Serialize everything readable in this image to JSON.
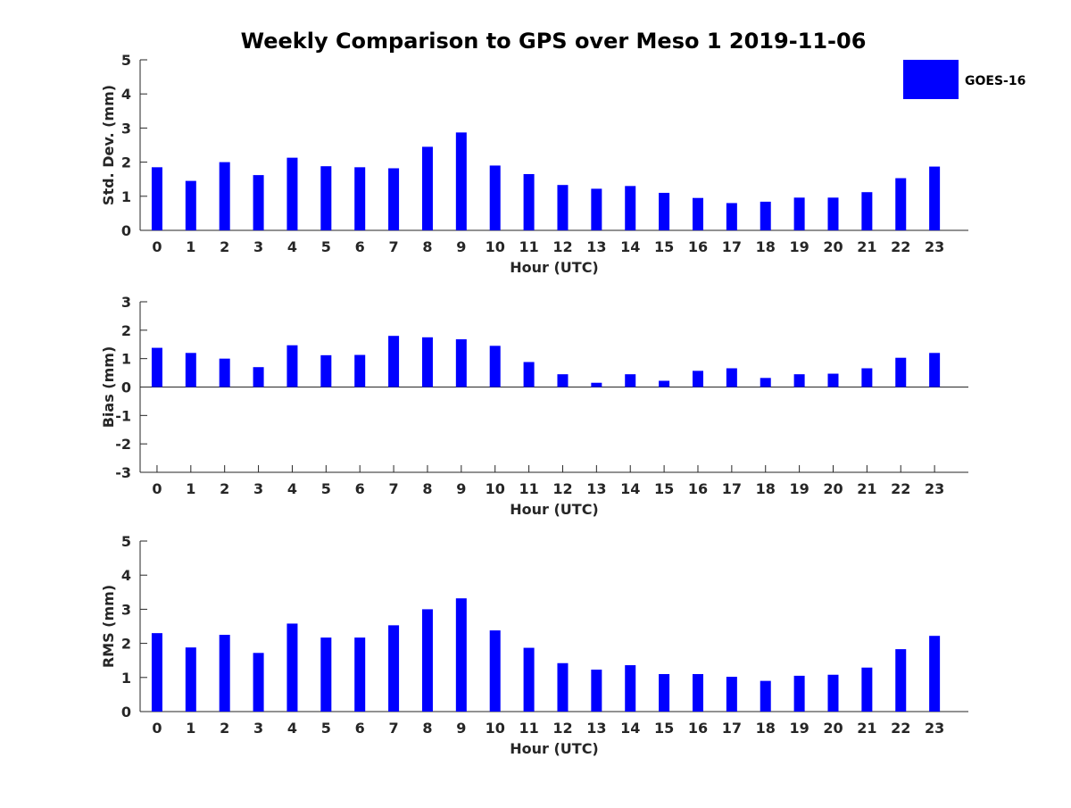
{
  "figure": {
    "title": "Weekly Comparison to GPS over Meso 1 2019-11-06",
    "legend": {
      "label": "GOES-16",
      "color": "#0000ff"
    },
    "bar_color": "#0000ff"
  },
  "chart_data": [
    {
      "type": "bar",
      "title": "Weekly Comparison to GPS over Meso 1 2019-11-06",
      "xlabel": "Hour (UTC)",
      "ylabel": "Std. Dev. (mm)",
      "ylim": [
        0,
        5
      ],
      "yticks": [
        0,
        1,
        2,
        3,
        4,
        5
      ],
      "categories": [
        "0",
        "1",
        "2",
        "3",
        "4",
        "5",
        "6",
        "7",
        "8",
        "9",
        "10",
        "11",
        "12",
        "13",
        "14",
        "15",
        "16",
        "17",
        "18",
        "19",
        "20",
        "21",
        "22",
        "23"
      ],
      "series": [
        {
          "name": "GOES-16",
          "values": [
            1.85,
            1.45,
            2.0,
            1.62,
            2.13,
            1.88,
            1.85,
            1.82,
            2.45,
            2.87,
            1.9,
            1.65,
            1.33,
            1.22,
            1.3,
            1.1,
            0.95,
            0.8,
            0.84,
            0.96,
            0.96,
            1.12,
            1.53,
            1.87
          ]
        }
      ]
    },
    {
      "type": "bar",
      "title": "",
      "xlabel": "Hour (UTC)",
      "ylabel": "Bias (mm)",
      "ylim": [
        -3,
        3
      ],
      "yticks": [
        -3,
        -2,
        -1,
        0,
        1,
        2,
        3
      ],
      "categories": [
        "0",
        "1",
        "2",
        "3",
        "4",
        "5",
        "6",
        "7",
        "8",
        "9",
        "10",
        "11",
        "12",
        "13",
        "14",
        "15",
        "16",
        "17",
        "18",
        "19",
        "20",
        "21",
        "22",
        "23"
      ],
      "series": [
        {
          "name": "GOES-16",
          "values": [
            1.38,
            1.2,
            1.0,
            0.7,
            1.47,
            1.12,
            1.13,
            1.8,
            1.75,
            1.68,
            1.45,
            0.88,
            0.45,
            0.15,
            0.45,
            0.22,
            0.57,
            0.66,
            0.32,
            0.45,
            0.47,
            0.66,
            1.03,
            1.2
          ]
        }
      ]
    },
    {
      "type": "bar",
      "title": "",
      "xlabel": "Hour (UTC)",
      "ylabel": "RMS (mm)",
      "ylim": [
        0,
        5
      ],
      "yticks": [
        0,
        1,
        2,
        3,
        4,
        5
      ],
      "categories": [
        "0",
        "1",
        "2",
        "3",
        "4",
        "5",
        "6",
        "7",
        "8",
        "9",
        "10",
        "11",
        "12",
        "13",
        "14",
        "15",
        "16",
        "17",
        "18",
        "19",
        "20",
        "21",
        "22",
        "23"
      ],
      "series": [
        {
          "name": "GOES-16",
          "values": [
            2.3,
            1.88,
            2.25,
            1.72,
            2.58,
            2.17,
            2.17,
            2.53,
            3.0,
            3.32,
            2.38,
            1.87,
            1.42,
            1.23,
            1.36,
            1.1,
            1.1,
            1.02,
            0.9,
            1.05,
            1.08,
            1.29,
            1.83,
            2.22
          ]
        }
      ]
    }
  ]
}
